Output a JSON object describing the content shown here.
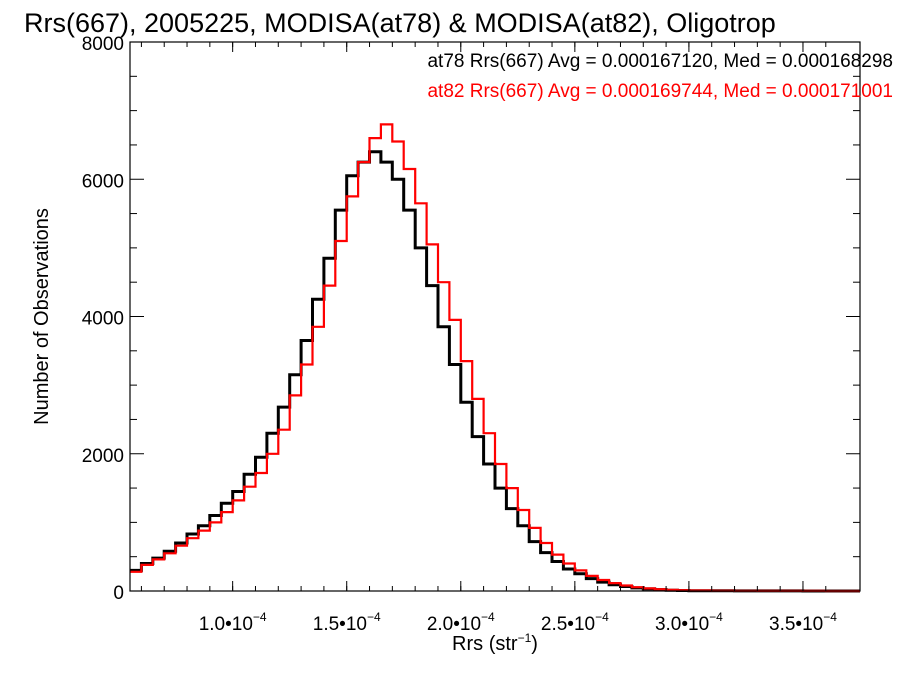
{
  "chart_data": {
    "type": "line",
    "title": "Rrs(667), 2005225, MODISA(at78) & MODISA(at82), Oligotrop",
    "xlabel": {
      "main": "Rrs (str",
      "sup": "−1",
      "close": ")"
    },
    "ylabel": "Number of Observations",
    "xlim": [
      5.5e-05,
      0.000375
    ],
    "ylim": [
      0,
      8000
    ],
    "x_ticks": [
      {
        "value": 0.0001,
        "mant": "1.0•10",
        "exp": "−4"
      },
      {
        "value": 0.00015,
        "mant": "1.5•10",
        "exp": "−4"
      },
      {
        "value": 0.0002,
        "mant": "2.0•10",
        "exp": "−4"
      },
      {
        "value": 0.00025,
        "mant": "2.5•10",
        "exp": "−4"
      },
      {
        "value": 0.0003,
        "mant": "3.0•10",
        "exp": "−4"
      },
      {
        "value": 0.00035,
        "mant": "3.5•10",
        "exp": "−4"
      }
    ],
    "y_ticks": [
      {
        "value": 0,
        "label": "0"
      },
      {
        "value": 2000,
        "label": "2000"
      },
      {
        "value": 4000,
        "label": "4000"
      },
      {
        "value": 6000,
        "label": "6000"
      },
      {
        "value": 8000,
        "label": "8000"
      }
    ],
    "legend": [
      {
        "text": "at78 Rrs(667) Avg = 0.000167120, Med = 0.000168298",
        "color": "#000000"
      },
      {
        "text": "at82 Rrs(667) Avg = 0.000169744, Med = 0.000171001",
        "color": "#ff0000"
      }
    ],
    "series": [
      {
        "color": "#000000",
        "x": [
          5.5e-05,
          6e-05,
          6.5e-05,
          7e-05,
          7.5e-05,
          8e-05,
          8.5e-05,
          9e-05,
          9.5e-05,
          0.0001,
          0.000105,
          0.00011,
          0.000115,
          0.00012,
          0.000125,
          0.00013,
          0.000135,
          0.00014,
          0.000145,
          0.00015,
          0.000155,
          0.00016,
          0.000165,
          0.00017,
          0.000175,
          0.00018,
          0.000185,
          0.00019,
          0.000195,
          0.0002,
          0.000205,
          0.00021,
          0.000215,
          0.00022,
          0.000225,
          0.00023,
          0.000235,
          0.00024,
          0.000245,
          0.00025,
          0.000255,
          0.00026,
          0.000265,
          0.00027,
          0.000275,
          0.00028,
          0.000285,
          0.00029,
          0.000295,
          0.0003,
          0.00031,
          0.00032,
          0.00033,
          0.00034,
          0.00035,
          0.00036,
          0.00037,
          0.000375
        ],
        "y": [
          300,
          400,
          480,
          580,
          700,
          830,
          950,
          1100,
          1280,
          1450,
          1700,
          1950,
          2300,
          2680,
          3150,
          3650,
          4250,
          4850,
          5550,
          6050,
          6250,
          6400,
          6250,
          6000,
          5550,
          5000,
          4450,
          3850,
          3300,
          2750,
          2250,
          1850,
          1500,
          1200,
          950,
          720,
          560,
          430,
          320,
          250,
          180,
          130,
          90,
          65,
          45,
          30,
          20,
          12,
          8,
          5,
          3,
          2,
          1,
          1,
          0,
          0,
          0,
          0
        ]
      },
      {
        "color": "#ff0000",
        "x": [
          5.5e-05,
          6e-05,
          6.5e-05,
          7e-05,
          7.5e-05,
          8e-05,
          8.5e-05,
          9e-05,
          9.5e-05,
          0.0001,
          0.000105,
          0.00011,
          0.000115,
          0.00012,
          0.000125,
          0.00013,
          0.000135,
          0.00014,
          0.000145,
          0.00015,
          0.000155,
          0.00016,
          0.000165,
          0.00017,
          0.000175,
          0.00018,
          0.000185,
          0.00019,
          0.000195,
          0.0002,
          0.000205,
          0.00021,
          0.000215,
          0.00022,
          0.000225,
          0.00023,
          0.000235,
          0.00024,
          0.000245,
          0.00025,
          0.000255,
          0.00026,
          0.000265,
          0.00027,
          0.000275,
          0.00028,
          0.000285,
          0.00029,
          0.000295,
          0.0003,
          0.00031,
          0.00032,
          0.00033,
          0.00034,
          0.00035,
          0.00036,
          0.00037,
          0.000375
        ],
        "y": [
          280,
          380,
          460,
          550,
          660,
          770,
          880,
          1000,
          1150,
          1320,
          1520,
          1720,
          2000,
          2350,
          2850,
          3300,
          3850,
          4450,
          5100,
          5750,
          6250,
          6600,
          6800,
          6550,
          6150,
          5650,
          5050,
          4500,
          3950,
          3350,
          2800,
          2300,
          1850,
          1500,
          1180,
          920,
          700,
          530,
          400,
          300,
          220,
          160,
          115,
          80,
          55,
          38,
          26,
          17,
          11,
          7,
          4,
          3,
          2,
          1,
          1,
          0,
          0,
          0
        ]
      }
    ],
    "grid": false
  }
}
